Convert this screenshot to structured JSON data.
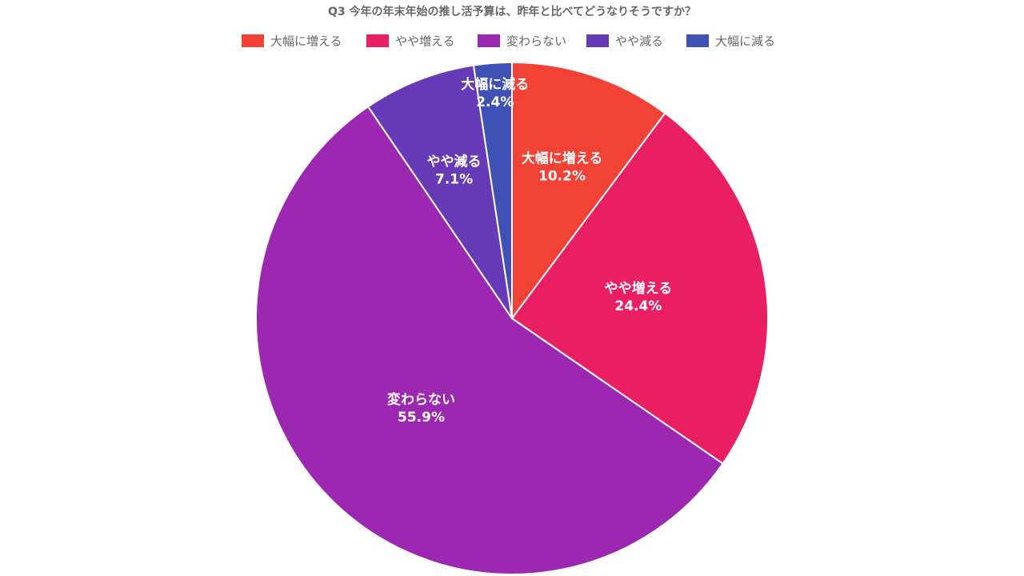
{
  "chart_data": {
    "type": "pie",
    "title": "Q3 今年の年末年始の推し活予算は、昨年と比べてどうなりそうですか？",
    "categories": [
      "大幅に増える",
      "やや増える",
      "変わらない",
      "やや減る",
      "大幅に減る"
    ],
    "values": [
      10.2,
      24.4,
      55.9,
      7.1,
      2.4
    ],
    "value_labels": [
      "10.2%",
      "24.4%",
      "55.9%",
      "7.1%",
      "2.4%"
    ],
    "colors": [
      "#f24236",
      "#e91e63",
      "#9c27b0",
      "#673ab7",
      "#3f51b5"
    ],
    "legend": "top"
  }
}
